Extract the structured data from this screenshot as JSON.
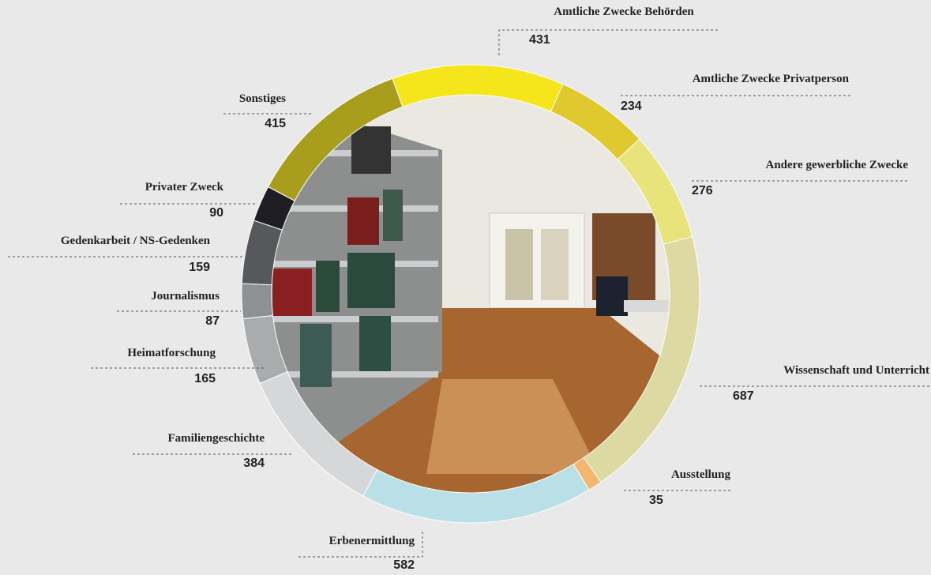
{
  "chart_data": {
    "type": "pie",
    "categories": [
      "Amtliche Zwecke Behörden",
      "Amtliche Zwecke Privatperson",
      "Andere gewerbliche Zwecke",
      "Wissenschaft und Unterricht",
      "Ausstellung",
      "Erbenermittlung",
      "Familiengeschichte",
      "Heimatforschung",
      "Journalismus",
      "Gedenkarbeit / NS-Gedenken",
      "Privater Zweck",
      "Sonstiges"
    ],
    "values": [
      431,
      234,
      276,
      687,
      35,
      582,
      384,
      165,
      87,
      159,
      90,
      415
    ],
    "colors": [
      "#f4e61a",
      "#dfc92e",
      "#e8e37a",
      "#dcd9a3",
      "#f3b66e",
      "#b8e0e6",
      "#d6d7d9",
      "#a9abad",
      "#8e9092",
      "#56585b",
      "#1e1e24",
      "#a89d1d"
    ]
  }
}
